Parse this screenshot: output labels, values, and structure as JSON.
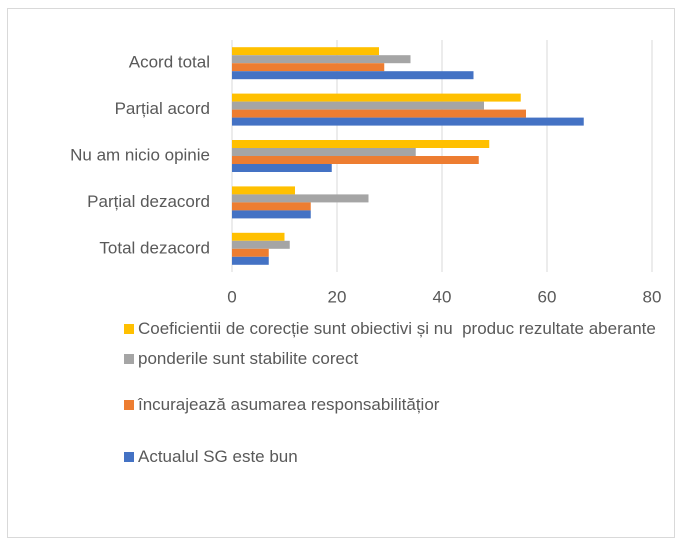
{
  "chart_data": {
    "type": "hbar",
    "categories": [
      "Acord total",
      "Parțial acord",
      "Nu am nicio opinie",
      "Parțial dezacord",
      "Total dezacord"
    ],
    "series": [
      {
        "name": "Coeficientii de corecție sunt obiectivi și nu  produc rezultate aberante",
        "color": "#ffc000",
        "values": [
          28,
          55,
          49,
          12,
          10
        ]
      },
      {
        "name": "ponderile sunt stabilite corect",
        "color": "#a5a5a5",
        "values": [
          34,
          48,
          35,
          26,
          11
        ]
      },
      {
        "name": "încurajează asumarea responsabilitățior",
        "color": "#ed7d31",
        "values": [
          29,
          56,
          47,
          15,
          7
        ]
      },
      {
        "name": "Actualul SG este bun",
        "color": "#4472c4",
        "values": [
          46,
          67,
          19,
          15,
          7
        ]
      }
    ],
    "xlim": [
      0,
      80
    ],
    "xticks": [
      0,
      20,
      40,
      60,
      80
    ],
    "grid": true
  }
}
